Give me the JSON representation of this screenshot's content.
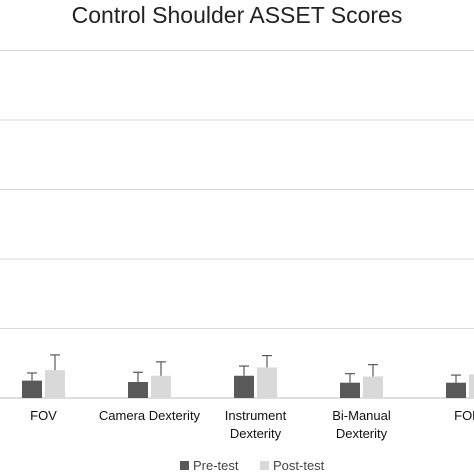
{
  "chart_data": {
    "type": "bar",
    "title": "Control Shoulder ASSET Scores",
    "xlabel": "",
    "ylabel": "",
    "categories": [
      [
        "FOV"
      ],
      [
        "Camera Dexterity"
      ],
      [
        "Instrument",
        "Dexterity"
      ],
      [
        "Bi-Manual",
        "Dexterity"
      ],
      [
        "FOP"
      ]
    ],
    "series": [
      {
        "name": "Pre-test",
        "color": "#595959",
        "values": [
          0.25,
          0.23,
          0.32,
          0.22,
          0.22
        ],
        "error": [
          0.11,
          0.14,
          0.14,
          0.13,
          0.11
        ]
      },
      {
        "name": "Post-test",
        "color": "#d9d9d9",
        "values": [
          0.4,
          0.32,
          0.44,
          0.31,
          0.34
        ],
        "error": [
          0.22,
          0.2,
          0.17,
          0.17,
          0.24
        ]
      }
    ],
    "ylim": [
      0,
      5
    ],
    "yticks": [
      0,
      1,
      2,
      3,
      4,
      5
    ],
    "show_ytick_labels": false,
    "grid": true,
    "legend_position": "bottom",
    "error_bar_color": "#595959"
  }
}
